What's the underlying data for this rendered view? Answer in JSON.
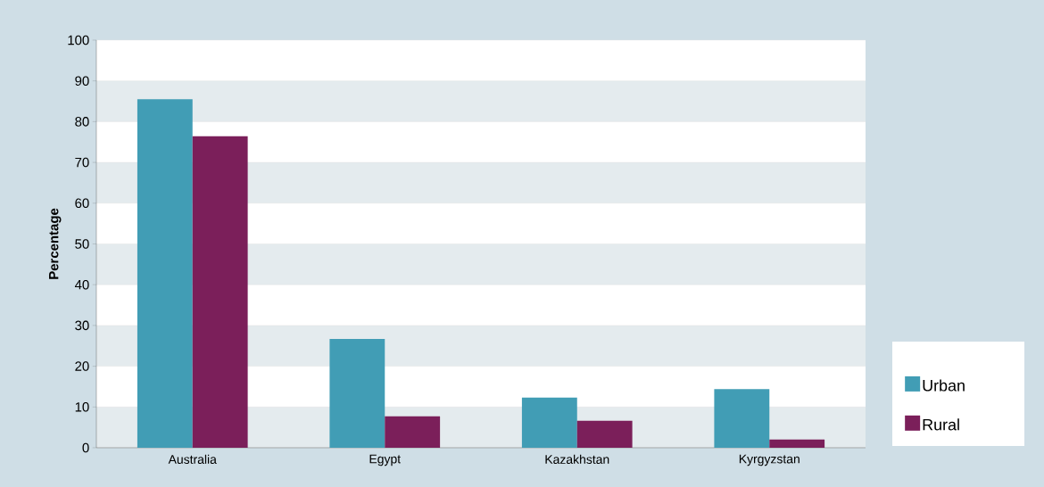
{
  "chart_data": {
    "type": "bar",
    "ylabel": "Percentage",
    "categories": [
      "Australia",
      "Egypt",
      "Kazakhstan",
      "Kyrgyzstan"
    ],
    "series": [
      {
        "name": "Urban",
        "color": "#419db5",
        "values": [
          85.5,
          26.7,
          12.3,
          14.4
        ]
      },
      {
        "name": "Rural",
        "color": "#7b1f5a",
        "values": [
          76.4,
          7.7,
          6.6,
          2.0
        ]
      }
    ],
    "ylim": [
      0,
      100
    ],
    "yticks": [
      0,
      10,
      20,
      30,
      40,
      50,
      60,
      70,
      80,
      90,
      100
    ],
    "grid": "y",
    "legend": "bottom right"
  }
}
